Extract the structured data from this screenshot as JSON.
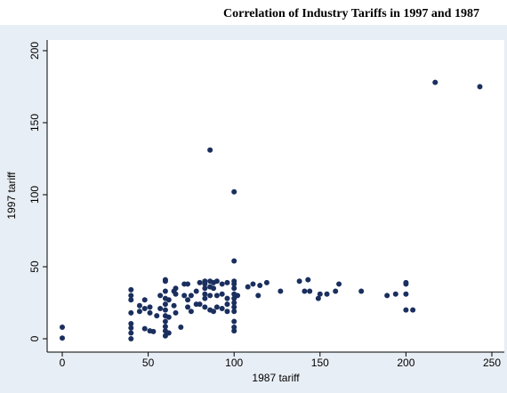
{
  "chart_data": {
    "type": "scatter",
    "title": "Correlation of Industry Tariffs in 1997 and 1987",
    "xlabel": "1987 tariff",
    "ylabel": "1997 tariff",
    "color": "#1a2f5e",
    "xlim": [
      0,
      250
    ],
    "xticks": [
      0,
      50,
      100,
      150,
      200,
      250
    ],
    "ylim": [
      0,
      200
    ],
    "yticks": [
      0,
      50,
      100,
      150,
      200
    ],
    "x": [
      0,
      0,
      40,
      40,
      40,
      40,
      40,
      40,
      40,
      40,
      45,
      45,
      48,
      48,
      48,
      51,
      51,
      51,
      53,
      55,
      57,
      57,
      60,
      60,
      60,
      60,
      60,
      60,
      60,
      60,
      60,
      60,
      60,
      62,
      62,
      62,
      65,
      65,
      66,
      66,
      66,
      69,
      71,
      71,
      73,
      73,
      73,
      75,
      75,
      78,
      78,
      80,
      80,
      83,
      83,
      83,
      83,
      83,
      83,
      86,
      86,
      86,
      86,
      86,
      88,
      88,
      88,
      90,
      90,
      90,
      93,
      93,
      93,
      96,
      96,
      96,
      96,
      100,
      100,
      100,
      100,
      100,
      100,
      100,
      100,
      100,
      100,
      100,
      100,
      100,
      102,
      108,
      111,
      114,
      115,
      119,
      127,
      138,
      141,
      143,
      144,
      149,
      150,
      154,
      159,
      161,
      174,
      189,
      194,
      200,
      200,
      200,
      200,
      204,
      217,
      243
    ],
    "values": [
      8,
      0.5,
      34,
      30,
      27,
      18,
      10.5,
      7.5,
      4,
      0,
      23,
      19,
      27,
      21,
      7,
      22,
      18,
      5.5,
      5,
      16,
      30,
      21,
      41,
      40,
      33,
      28,
      24,
      20,
      16,
      12,
      8.5,
      5.5,
      2,
      27,
      15,
      4,
      33,
      23,
      35,
      31,
      18,
      8,
      38,
      30,
      38,
      27,
      22,
      19,
      30,
      24,
      33,
      39,
      24,
      40,
      38,
      35,
      31,
      28,
      22,
      131,
      40,
      36,
      30,
      20,
      39,
      35,
      19,
      40,
      30,
      22,
      38,
      31,
      21,
      39,
      28,
      24,
      19,
      102,
      54,
      40,
      38,
      35,
      31,
      28,
      25,
      22,
      19,
      12,
      8,
      5.5,
      30,
      36,
      38,
      30,
      37,
      39,
      33,
      40,
      33,
      41,
      33,
      28,
      31,
      31,
      33,
      38,
      33,
      30,
      31,
      39,
      38,
      31,
      20,
      20,
      178,
      175
    ]
  }
}
